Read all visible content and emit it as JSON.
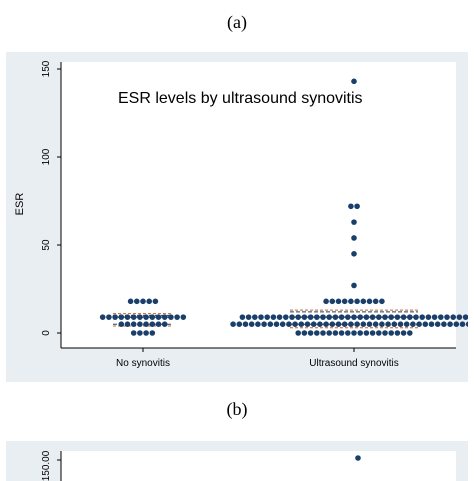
{
  "captions": {
    "a": "(a)",
    "b": "(b)"
  },
  "chart_data": [
    {
      "type": "scatter",
      "title": "ESR levels by ultrasound synovitis",
      "xlabel": "",
      "ylabel": "ESR",
      "ylim": [
        0,
        150
      ],
      "yticks": [
        0,
        50,
        100,
        150
      ],
      "categories": [
        "No synovitis",
        "Ultrasound synovitis"
      ],
      "groups": [
        {
          "name": "No synovitis",
          "values": [
            0,
            0,
            0,
            0,
            5,
            5,
            5,
            5,
            5,
            5,
            5,
            5,
            9,
            9,
            9,
            9,
            9,
            9,
            9,
            9,
            9,
            9,
            9,
            9,
            9,
            9,
            18,
            18,
            18,
            18,
            18
          ],
          "reference_lines": {
            "median_solid": 9,
            "blue_dashed": [
              5,
              10
            ],
            "orange_dashed": [
              4,
              11
            ]
          }
        },
        {
          "name": "Ultrasound synovitis",
          "values": [
            0,
            0,
            0,
            0,
            0,
            0,
            0,
            0,
            0,
            0,
            0,
            0,
            0,
            0,
            0,
            0,
            0,
            0,
            0,
            5,
            5,
            5,
            5,
            5,
            5,
            5,
            5,
            5,
            5,
            5,
            5,
            5,
            5,
            5,
            5,
            5,
            5,
            5,
            5,
            5,
            5,
            5,
            5,
            5,
            5,
            5,
            5,
            5,
            5,
            5,
            5,
            5,
            5,
            5,
            5,
            5,
            5,
            5,
            5,
            9,
            9,
            9,
            9,
            9,
            9,
            9,
            9,
            9,
            9,
            9,
            9,
            9,
            9,
            9,
            9,
            9,
            9,
            9,
            9,
            9,
            9,
            9,
            9,
            9,
            9,
            9,
            9,
            9,
            9,
            9,
            9,
            9,
            9,
            9,
            9,
            9,
            18,
            18,
            18,
            18,
            18,
            18,
            18,
            18,
            18,
            18,
            27,
            45,
            54,
            63,
            72,
            72,
            143
          ],
          "reference_lines": {
            "median_solid": 9,
            "blue_dashed": [
              5,
              12
            ],
            "orange_dashed": [
              3,
              13
            ]
          }
        }
      ],
      "dot_color": "#1a3f6b",
      "line_colors": {
        "median": "#1a3f6b",
        "blue_dashed": "#1a3f6b",
        "orange_dashed": "#c8641e"
      }
    },
    {
      "type": "scatter",
      "title": "",
      "ylabel": "",
      "yticks": [
        150.0
      ],
      "ytick_labels": [
        "150.00"
      ],
      "values": [
        150
      ],
      "dot_color": "#1a3f6b"
    }
  ]
}
